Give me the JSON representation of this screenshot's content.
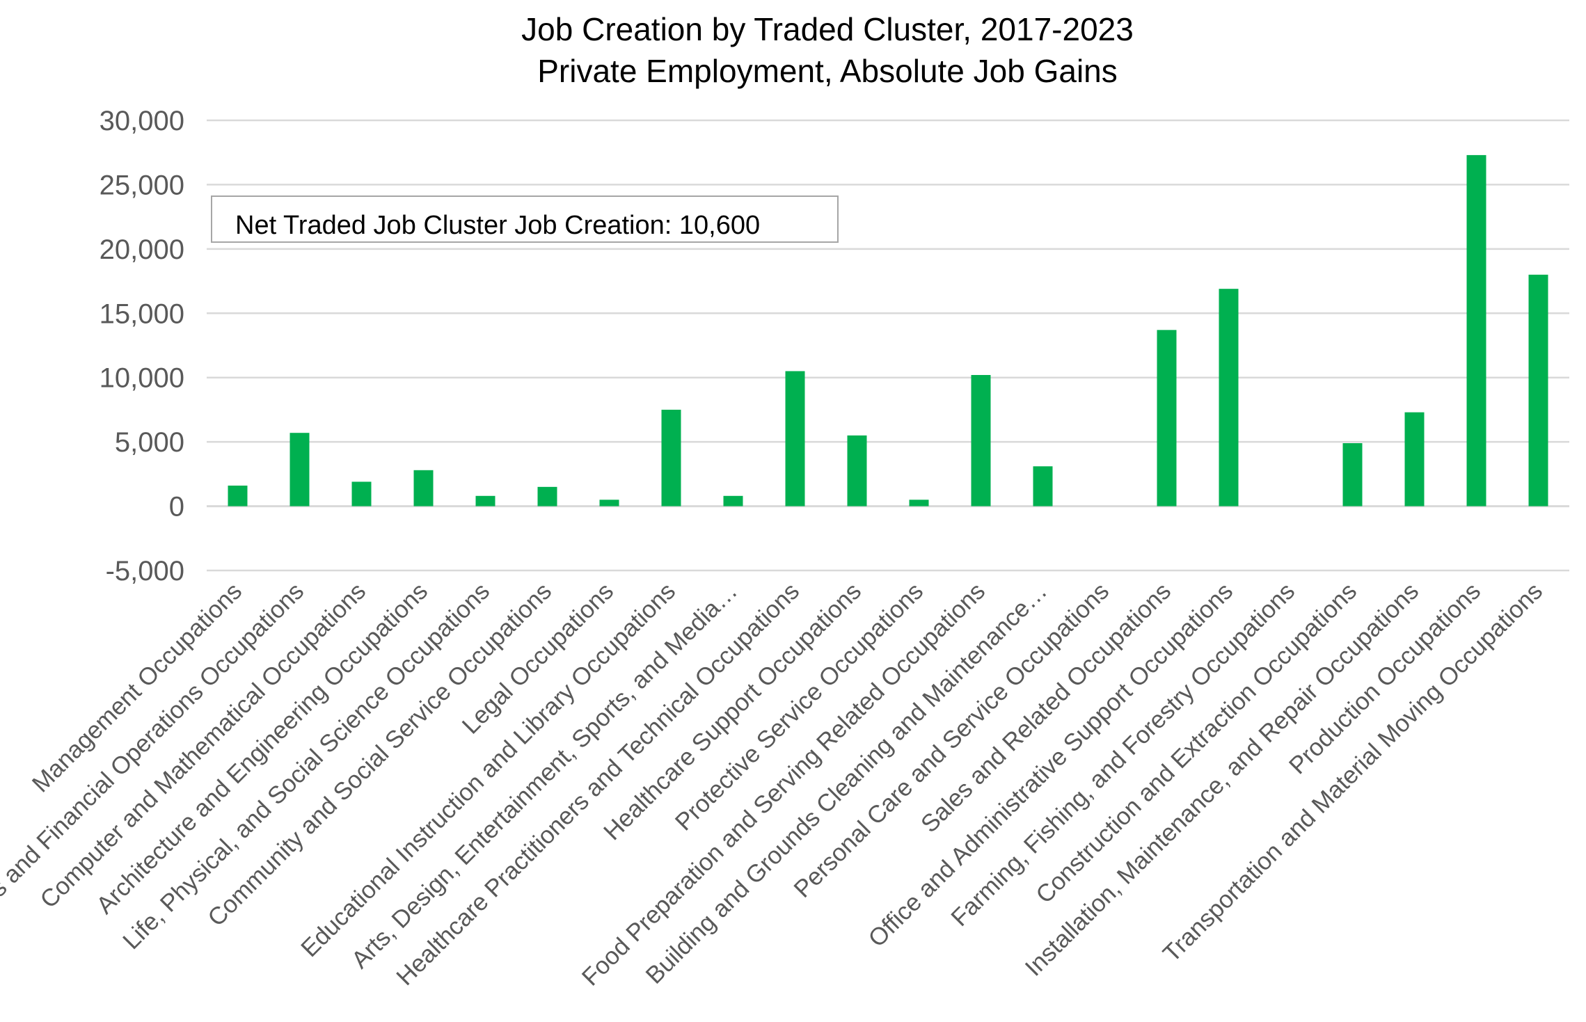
{
  "chart_data": {
    "type": "bar",
    "title": "Job Creation by Traded Cluster, 2017-2023",
    "subtitle": "Private Employment, Absolute Job Gains",
    "annotation": "Net Traded Job Cluster Job Creation: 10,600",
    "ylim": [
      -5000,
      30000
    ],
    "y_ticks": [
      30000,
      25000,
      20000,
      15000,
      10000,
      5000,
      0,
      -5000
    ],
    "y_tick_labels": [
      "30,000",
      "25,000",
      "20,000",
      "15,000",
      "10,000",
      "5,000",
      "0",
      "-5,000"
    ],
    "grid": true,
    "legend": "none",
    "bar_color": "#00B050",
    "categories": [
      "Management Occupations",
      "Business and Financial Operations Occupations",
      "Computer and Mathematical Occupations",
      "Architecture and Engineering Occupations",
      "Life, Physical, and Social Science Occupations",
      "Community and Social Service Occupations",
      "Legal Occupations",
      "Educational Instruction and Library Occupations",
      "Arts, Design, Entertainment, Sports, and Media…",
      "Healthcare Practitioners and Technical Occupations",
      "Healthcare Support Occupations",
      "Protective Service Occupations",
      "Food Preparation and Serving Related Occupations",
      "Building and Grounds Cleaning and Maintenance…",
      "Personal Care and Service Occupations",
      "Sales and Related Occupations",
      "Office and Administrative Support Occupations",
      "Farming, Fishing, and Forestry Occupations",
      "Construction and Extraction Occupations",
      "Installation, Maintenance, and Repair Occupations",
      "Production Occupations",
      "Transportation and Material Moving Occupations"
    ],
    "values": [
      1600,
      5700,
      1900,
      2800,
      800,
      1500,
      500,
      7500,
      800,
      10500,
      5500,
      500,
      10200,
      3100,
      0,
      13700,
      16900,
      0,
      4900,
      7300,
      27300,
      18000
    ]
  },
  "colors": {
    "bar": "#00B050",
    "grid": "#D9D9D9",
    "axis_text": "#595959",
    "title_text": "#000000",
    "annotation_border": "#A6A6A6"
  }
}
